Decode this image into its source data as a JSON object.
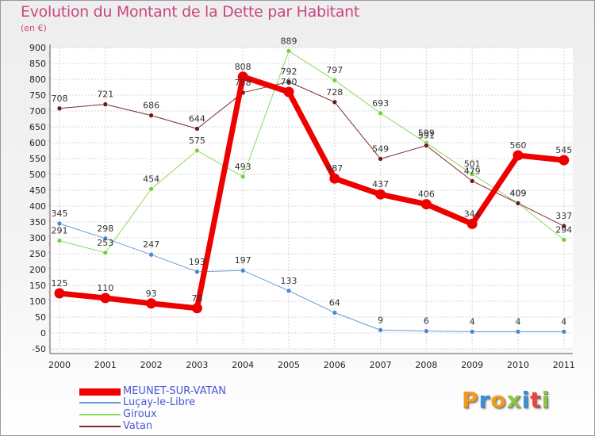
{
  "title": "Evolution du Montant de la Dette par Habitant",
  "unit": "(en €)",
  "logo": {
    "text": "Proxiti",
    "colors": [
      "#f29a1e",
      "#3a8fd9",
      "#f29a1e",
      "#8fc63f",
      "#3a8fd9",
      "#e8453c",
      "#8fc63f"
    ]
  },
  "chart_data": {
    "type": "line",
    "title": "Evolution du Montant de la Dette par Habitant",
    "ylabel": "(en €)",
    "xlabel": "",
    "categories": [
      "2000",
      "2001",
      "2002",
      "2003",
      "2004",
      "2005",
      "2006",
      "2007",
      "2008",
      "2009",
      "2010",
      "2011"
    ],
    "ylim": [
      -50,
      900
    ],
    "yticks": [
      -50,
      0,
      50,
      100,
      150,
      200,
      250,
      300,
      350,
      400,
      450,
      500,
      550,
      600,
      650,
      700,
      750,
      800,
      850,
      900
    ],
    "grid": true,
    "legend_position": "bottom",
    "series": [
      {
        "name": "MEUNET-SUR-VATAN",
        "color": "#ee0000",
        "width": 7,
        "values": [
          125,
          110,
          93,
          78,
          808,
          760,
          487,
          437,
          406,
          344,
          560,
          545
        ]
      },
      {
        "name": "Luçay-le-Libre",
        "color": "#6a9ad4",
        "width": 1,
        "values": [
          345,
          298,
          247,
          193,
          197,
          133,
          64,
          9,
          6,
          4,
          4,
          4
        ]
      },
      {
        "name": "Giroux",
        "color": "#8fd85a",
        "width": 1,
        "values": [
          291,
          253,
          454,
          575,
          493,
          889,
          797,
          693,
          599,
          501,
          409,
          294
        ]
      },
      {
        "name": "Vatan",
        "color": "#7a2a2a",
        "width": 1,
        "values": [
          708,
          721,
          686,
          644,
          758,
          792,
          728,
          549,
          591,
          479,
          409,
          337
        ]
      }
    ],
    "data_labels": [
      {
        "series": 0,
        "labels": [
          "125",
          "110",
          "93",
          "78",
          "808",
          "760",
          "487",
          "437",
          "406",
          "344",
          "560",
          "545"
        ]
      },
      {
        "series": 1,
        "labels": [
          "345",
          "298",
          "247",
          "193",
          "197",
          "133",
          "64",
          "9",
          "6",
          "4",
          "4",
          "4"
        ]
      },
      {
        "series": 2,
        "labels": [
          "291",
          "253",
          "454",
          "575",
          "493",
          "889",
          "797",
          "693",
          "599",
          "501",
          "409",
          "294"
        ]
      },
      {
        "series": 3,
        "labels": [
          "708",
          "721",
          "686",
          "644",
          "758",
          "792",
          "728",
          "549",
          "591",
          "479",
          "409",
          "337"
        ]
      }
    ]
  }
}
